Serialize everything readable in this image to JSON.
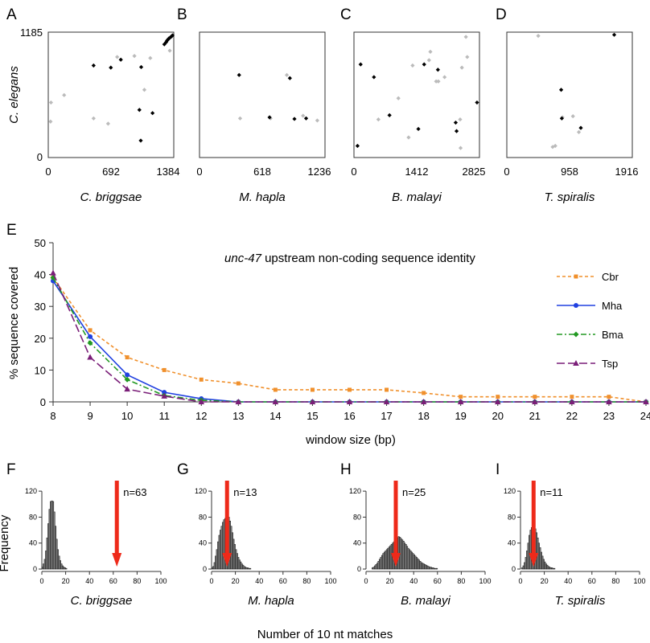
{
  "chart_data": [
    {
      "panel": "A",
      "type": "scatter",
      "xlabel": "C. briggsae",
      "ylabel": "C. elegans",
      "xlim": [
        0,
        1384
      ],
      "ylim": [
        0,
        1185
      ],
      "xticks": [
        "0",
        "692",
        "1384"
      ],
      "yticks": [
        "0",
        "1185"
      ],
      "series": [
        {
          "color": "#000000",
          "points": [
            [
              1280,
              1070
            ],
            [
              1300,
              1090
            ],
            [
              1310,
              1105
            ],
            [
              1320,
              1115
            ],
            [
              1330,
              1125
            ],
            [
              1345,
              1135
            ],
            [
              1360,
              1145
            ],
            [
              1370,
              1155
            ],
            [
              500,
              870
            ],
            [
              690,
              850
            ],
            [
              800,
              925
            ],
            [
              1025,
              855
            ],
            [
              1005,
              450
            ],
            [
              1150,
              420
            ],
            [
              1020,
              160
            ]
          ]
        },
        {
          "color": "#bbbbbb",
          "points": [
            [
              30,
              520
            ],
            [
              25,
              340
            ],
            [
              175,
              590
            ],
            [
              760,
              950
            ],
            [
              950,
              960
            ],
            [
              1060,
              640
            ],
            [
              1340,
              1010
            ],
            [
              500,
              370
            ],
            [
              660,
              320
            ],
            [
              1125,
              940
            ]
          ]
        }
      ]
    },
    {
      "panel": "B",
      "type": "scatter",
      "xlabel": "M. hapla",
      "xlim": [
        0,
        1236
      ],
      "xticks": [
        "0",
        "618",
        "1236"
      ],
      "series": [
        {
          "color": "#000000",
          "points": [
            [
              390,
              780
            ],
            [
              890,
              750
            ],
            [
              690,
              380
            ],
            [
              935,
              365
            ],
            [
              1050,
              370
            ]
          ]
        },
        {
          "color": "#bbbbbb",
          "points": [
            [
              400,
              370
            ],
            [
              860,
              780
            ],
            [
              700,
              370
            ],
            [
              1020,
              395
            ],
            [
              1160,
              350
            ]
          ]
        }
      ]
    },
    {
      "panel": "C",
      "type": "scatter",
      "xlabel": "B. malayi",
      "xlim": [
        0,
        2825
      ],
      "xticks": [
        "0",
        "1412",
        "2825"
      ],
      "series": [
        {
          "color": "#000000",
          "points": [
            [
              150,
              880
            ],
            [
              450,
              760
            ],
            [
              800,
              400
            ],
            [
              1580,
              880
            ],
            [
              1890,
              830
            ],
            [
              2290,
              330
            ],
            [
              2770,
              520
            ],
            [
              2310,
              250
            ],
            [
              1450,
              270
            ],
            [
              80,
              110
            ]
          ]
        },
        {
          "color": "#bbbbbb",
          "points": [
            [
              1320,
              870
            ],
            [
              1690,
              920
            ],
            [
              1720,
              1000
            ],
            [
              2040,
              760
            ],
            [
              2520,
              1140
            ],
            [
              2550,
              950
            ],
            [
              2430,
              850
            ],
            [
              1900,
              720
            ],
            [
              2390,
              360
            ],
            [
              2400,
              90
            ],
            [
              1230,
              190
            ],
            [
              550,
              360
            ],
            [
              1850,
              720
            ],
            [
              1000,
              560
            ]
          ]
        }
      ]
    },
    {
      "panel": "D",
      "type": "scatter",
      "xlabel": "T. spiralis",
      "xlim": [
        0,
        1916
      ],
      "xticks": [
        "0",
        "958",
        "1916"
      ],
      "series": [
        {
          "color": "#000000",
          "points": [
            [
              1640,
              1160
            ],
            [
              830,
              640
            ],
            [
              840,
              370
            ],
            [
              1130,
              280
            ]
          ]
        },
        {
          "color": "#bbbbbb",
          "points": [
            [
              480,
              1150
            ],
            [
              740,
              110
            ],
            [
              1010,
              390
            ],
            [
              1100,
              240
            ],
            [
              850,
              380
            ],
            [
              700,
              100
            ]
          ]
        }
      ]
    },
    {
      "panel": "E",
      "type": "line",
      "title": "unc-47 upstream non-coding sequence identity",
      "xlabel": "window size (bp)",
      "ylabel": "% sequence covered",
      "xlim": [
        8,
        24
      ],
      "ylim": [
        0,
        50
      ],
      "x": [
        8,
        9,
        10,
        11,
        12,
        13,
        14,
        15,
        16,
        17,
        18,
        19,
        20,
        21,
        22,
        23,
        24
      ],
      "yticks": [
        0,
        10,
        20,
        30,
        40,
        50
      ],
      "legend_position": "right",
      "series": [
        {
          "name": "Cbr",
          "color": "#f0902c",
          "dash": "4,3",
          "marker": "square",
          "values": [
            39,
            22.5,
            14,
            10,
            7,
            5.8,
            3.8,
            3.8,
            3.8,
            3.8,
            2.8,
            1.6,
            1.6,
            1.6,
            1.6,
            1.6,
            0
          ]
        },
        {
          "name": "Mha",
          "color": "#2040e0",
          "dash": "",
          "marker": "circle",
          "values": [
            38,
            20.5,
            8.5,
            3,
            1,
            0,
            0,
            0,
            0,
            0,
            0,
            0,
            0,
            0,
            0,
            0,
            0
          ]
        },
        {
          "name": "Bma",
          "color": "#229922",
          "dash": "7,3,2,3",
          "marker": "diamond",
          "values": [
            39,
            18.5,
            7,
            2,
            0.5,
            0,
            0,
            0,
            0,
            0,
            0,
            0,
            0,
            0,
            0,
            0,
            0
          ]
        },
        {
          "name": "Tsp",
          "color": "#7a1e78",
          "dash": "10,4",
          "marker": "triangle",
          "values": [
            40.5,
            14,
            4,
            1.8,
            0,
            0,
            0,
            0,
            0,
            0,
            0,
            0,
            0,
            0,
            0,
            0,
            0
          ]
        }
      ]
    },
    {
      "panel": "F",
      "type": "bar",
      "xlabel": "C. briggsae",
      "ylabel": "Frequency",
      "xlim": [
        0,
        100
      ],
      "ylim": [
        0,
        130
      ],
      "xticks": [
        0,
        20,
        40,
        60,
        80,
        100
      ],
      "yticks": [
        0,
        40,
        80,
        120
      ],
      "bin_start": 0,
      "bin_width": 1,
      "values": [
        3,
        8,
        15,
        28,
        48,
        70,
        92,
        104,
        105,
        104,
        88,
        66,
        46,
        30,
        20,
        13,
        8,
        5,
        3,
        2,
        1
      ],
      "observed": 63,
      "observed_label": "n=63"
    },
    {
      "panel": "G",
      "type": "bar",
      "xlabel": "M. hapla",
      "xlim": [
        0,
        100
      ],
      "ylim": [
        0,
        130
      ],
      "xticks": [
        0,
        20,
        40,
        60,
        80,
        100
      ],
      "yticks": [
        0,
        40,
        80,
        120
      ],
      "bin_start": 0,
      "bin_width": 1,
      "values": [
        2,
        4,
        10,
        20,
        30,
        42,
        52,
        60,
        66,
        72,
        76,
        78,
        80,
        81,
        80,
        74,
        66,
        56,
        46,
        38,
        30,
        24,
        18,
        14,
        11,
        8,
        6,
        4,
        3,
        2,
        2,
        1,
        1
      ],
      "observed": 13,
      "observed_label": "n=13"
    },
    {
      "panel": "H",
      "type": "bar",
      "xlabel": "B. malayi",
      "xlim": [
        0,
        100
      ],
      "ylim": [
        0,
        130
      ],
      "xticks": [
        0,
        20,
        40,
        60,
        80,
        100
      ],
      "yticks": [
        0,
        40,
        80,
        120
      ],
      "bin_start": 5,
      "bin_width": 1,
      "values": [
        2,
        3,
        5,
        7,
        9,
        12,
        15,
        18,
        21,
        24,
        26,
        28,
        30,
        32,
        34,
        36,
        38,
        40,
        42,
        44,
        46,
        48,
        50,
        49,
        47,
        45,
        43,
        40,
        38,
        35,
        32,
        30,
        28,
        26,
        24,
        22,
        20,
        18,
        16,
        14,
        12,
        10,
        9,
        8,
        7,
        6,
        5,
        4,
        3,
        3,
        2,
        2,
        1,
        1,
        1
      ],
      "observed": 25,
      "observed_label": "n=25"
    },
    {
      "panel": "I",
      "type": "bar",
      "xlabel": "T. spiralis",
      "xlim": [
        0,
        100
      ],
      "ylim": [
        0,
        130
      ],
      "xticks": [
        0,
        20,
        40,
        60,
        80,
        100
      ],
      "yticks": [
        0,
        40,
        80,
        120
      ],
      "bin_start": 1,
      "bin_width": 1,
      "values": [
        2,
        5,
        10,
        18,
        28,
        40,
        52,
        60,
        64,
        66,
        65,
        62,
        56,
        48,
        40,
        33,
        26,
        20,
        15,
        11,
        8,
        6,
        4,
        3,
        2,
        2,
        1,
        1
      ],
      "observed": 11,
      "observed_label": "n=11"
    }
  ],
  "histogram_shared_xlabel": "Number of 10 nt matches",
  "arrow_color": "#ee2a1a",
  "scatter_point_colors": {
    "conserved": "#000000",
    "other": "#bbbbbb"
  }
}
